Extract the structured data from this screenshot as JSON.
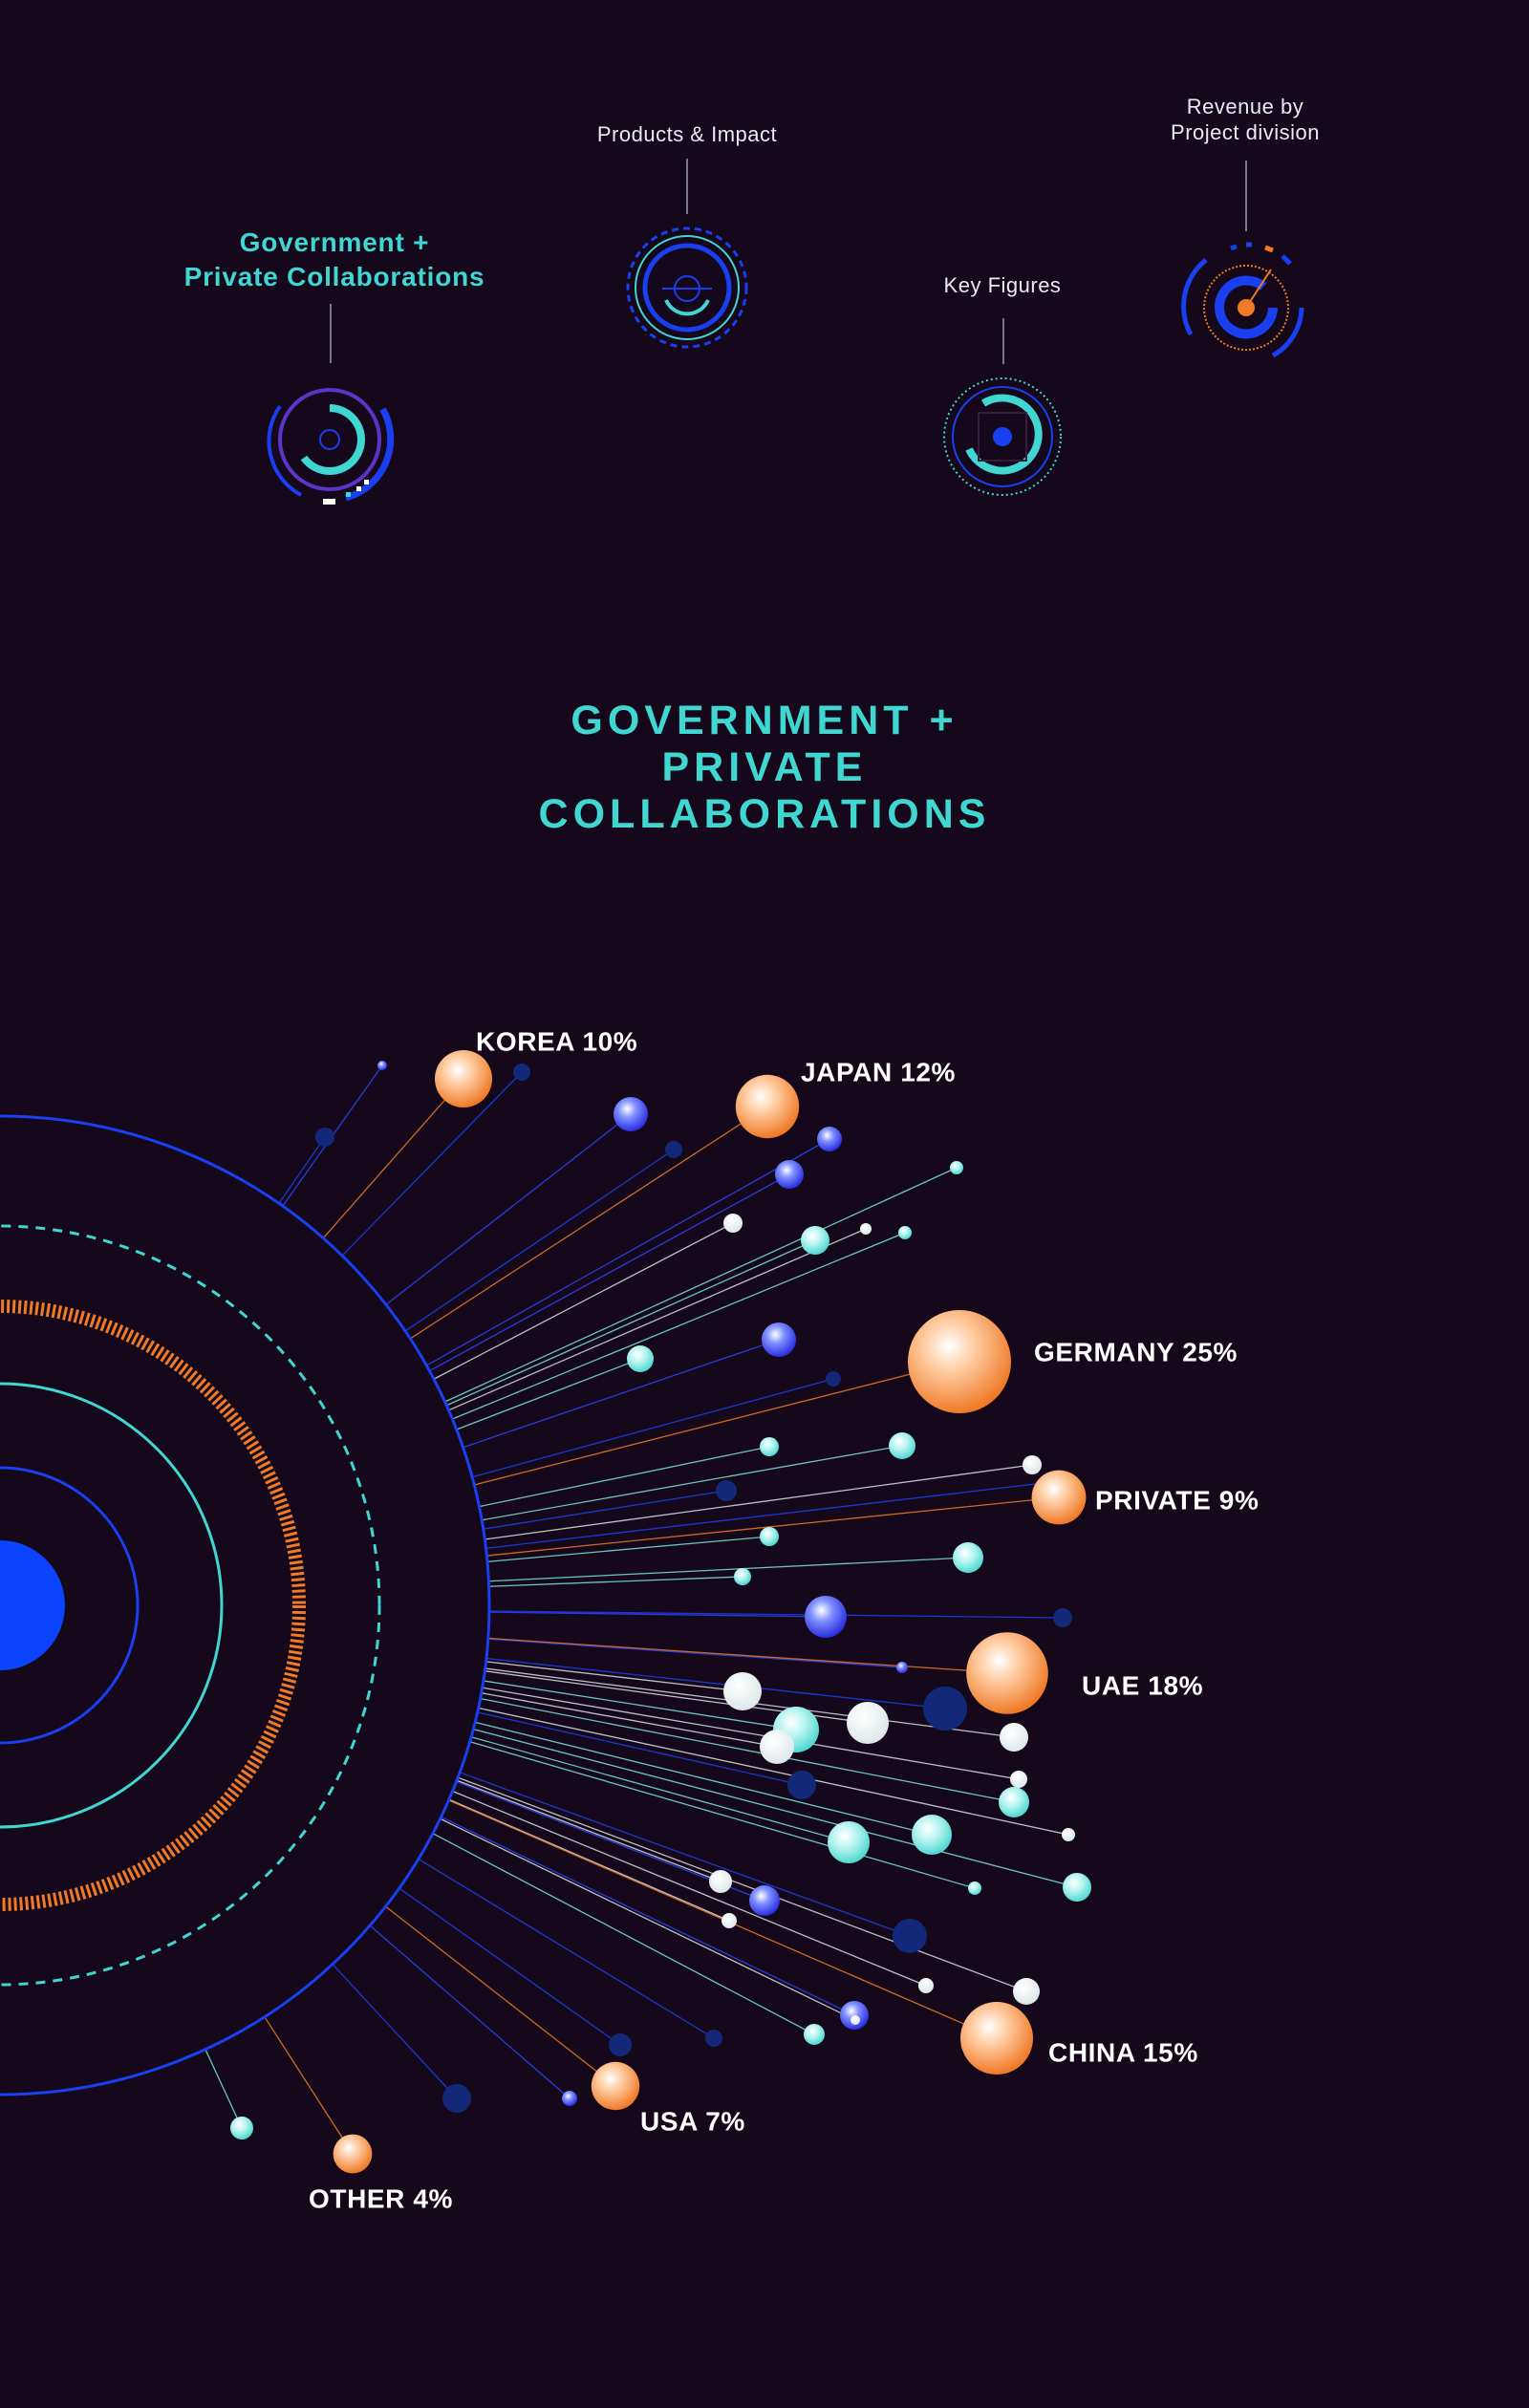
{
  "nav": {
    "items": [
      {
        "id": "government",
        "label": "Government +\nPrivate Collaborations",
        "active": true
      },
      {
        "id": "products",
        "label": "Products & Impact",
        "active": false
      },
      {
        "id": "keyfigures",
        "label": "Key Figures",
        "active": false
      },
      {
        "id": "revenue",
        "label": "Revenue by\nProject division",
        "active": false
      }
    ]
  },
  "section_title": "GOVERNMENT +\nPRIVATE\nCOLLABORATIONS",
  "colors": {
    "background": "#14081a",
    "accent_cyan": "#40d6d2",
    "accent_blue": "#1a3ff0",
    "accent_orange": "#f07a28",
    "white": "#ffffff"
  },
  "chart_data": {
    "type": "bubble-burst",
    "title": "GOVERNMENT + PRIVATE COLLABORATIONS",
    "labeled_categories": [
      {
        "name": "KOREA",
        "value": 10,
        "label": "KOREA 10%"
      },
      {
        "name": "JAPAN",
        "value": 12,
        "label": "JAPAN 12%"
      },
      {
        "name": "GERMANY",
        "value": 25,
        "label": "GERMANY 25%"
      },
      {
        "name": "PRIVATE",
        "value": 9,
        "label": "PRIVATE 9%"
      },
      {
        "name": "UAE",
        "value": 18,
        "label": "UAE 18%"
      },
      {
        "name": "CHINA",
        "value": 15,
        "label": "CHINA 15%"
      },
      {
        "name": "USA",
        "value": 7,
        "label": "USA 7%"
      },
      {
        "name": "OTHER",
        "value": 4,
        "label": "OTHER 4%"
      }
    ],
    "unit": "%",
    "legend": "none"
  }
}
